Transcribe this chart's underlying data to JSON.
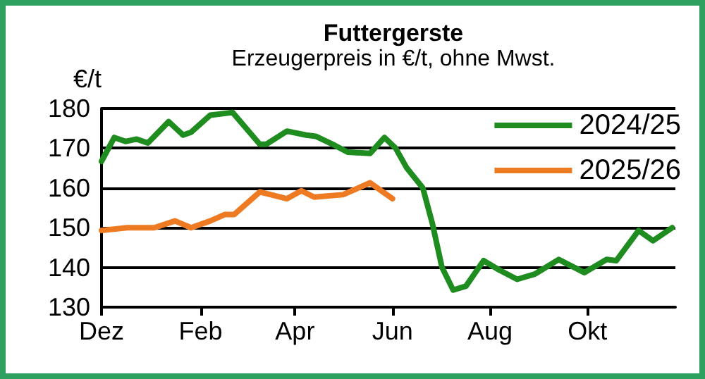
{
  "chart_data": {
    "type": "line",
    "title": "Futtergerste",
    "subtitle": "Erzeugerpreis in €/t, ohne Mwst.",
    "ylabel": "€/t",
    "xlim": [
      "2024-12-01",
      "2025-11-25"
    ],
    "xticks": [
      {
        "value": "2024-12-01",
        "label": "Dez"
      },
      {
        "value": "2025-02-01",
        "label": "Feb"
      },
      {
        "value": "2025-04-01",
        "label": "Apr"
      },
      {
        "value": "2025-06-01",
        "label": "Jun"
      },
      {
        "value": "2025-08-01",
        "label": "Aug"
      },
      {
        "value": "2025-10-01",
        "label": "Okt"
      }
    ],
    "ylim": [
      130,
      180
    ],
    "yticks": [
      130,
      140,
      150,
      160,
      170,
      180
    ],
    "grid": "y",
    "legend": "top right",
    "marker": "none",
    "line_style": "solid",
    "series": [
      {
        "name": "2024/25",
        "color": "#1e8c1e",
        "x": [
          "2024-12-01",
          "2024-12-09",
          "2024-12-16",
          "2024-12-23",
          "2024-12-30",
          "2025-01-12",
          "2025-01-21",
          "2025-01-26",
          "2025-02-07",
          "2025-02-21",
          "2025-03-10",
          "2025-03-14",
          "2025-03-27",
          "2025-04-08",
          "2025-04-14",
          "2025-04-26",
          "2025-05-04",
          "2025-05-18",
          "2025-05-27",
          "2025-06-03",
          "2025-06-10",
          "2025-06-20",
          "2025-06-26",
          "2025-07-02",
          "2025-07-09",
          "2025-07-17",
          "2025-07-28",
          "2025-08-07",
          "2025-08-18",
          "2025-08-29",
          "2025-09-13",
          "2025-09-29",
          "2025-10-13",
          "2025-10-19",
          "2025-11-02",
          "2025-11-11",
          "2025-11-23"
        ],
        "values": [
          166.7,
          172.7,
          171.7,
          172.3,
          171.3,
          176.7,
          173.3,
          174,
          178.3,
          179,
          171,
          171,
          174.3,
          173.3,
          173,
          170.7,
          169,
          168.7,
          172.7,
          170,
          165,
          160,
          151,
          140,
          134.3,
          135.3,
          141.7,
          139.3,
          137,
          138.3,
          142,
          138.7,
          142,
          141.7,
          149.3,
          146.7,
          150
        ]
      },
      {
        "name": "2025/26",
        "color": "#ee7a22",
        "x": [
          "2024-12-01",
          "2024-12-17",
          "2025-01-03",
          "2025-01-16",
          "2025-01-26",
          "2025-02-07",
          "2025-02-16",
          "2025-02-22",
          "2025-03-10",
          "2025-03-27",
          "2025-04-05",
          "2025-04-13",
          "2025-05-01",
          "2025-05-18",
          "2025-06-01"
        ],
        "values": [
          149.3,
          150,
          150,
          151.7,
          150,
          151.7,
          153.3,
          153.3,
          159,
          157.3,
          159.3,
          157.7,
          158.3,
          161.3,
          157.3
        ]
      }
    ]
  }
}
